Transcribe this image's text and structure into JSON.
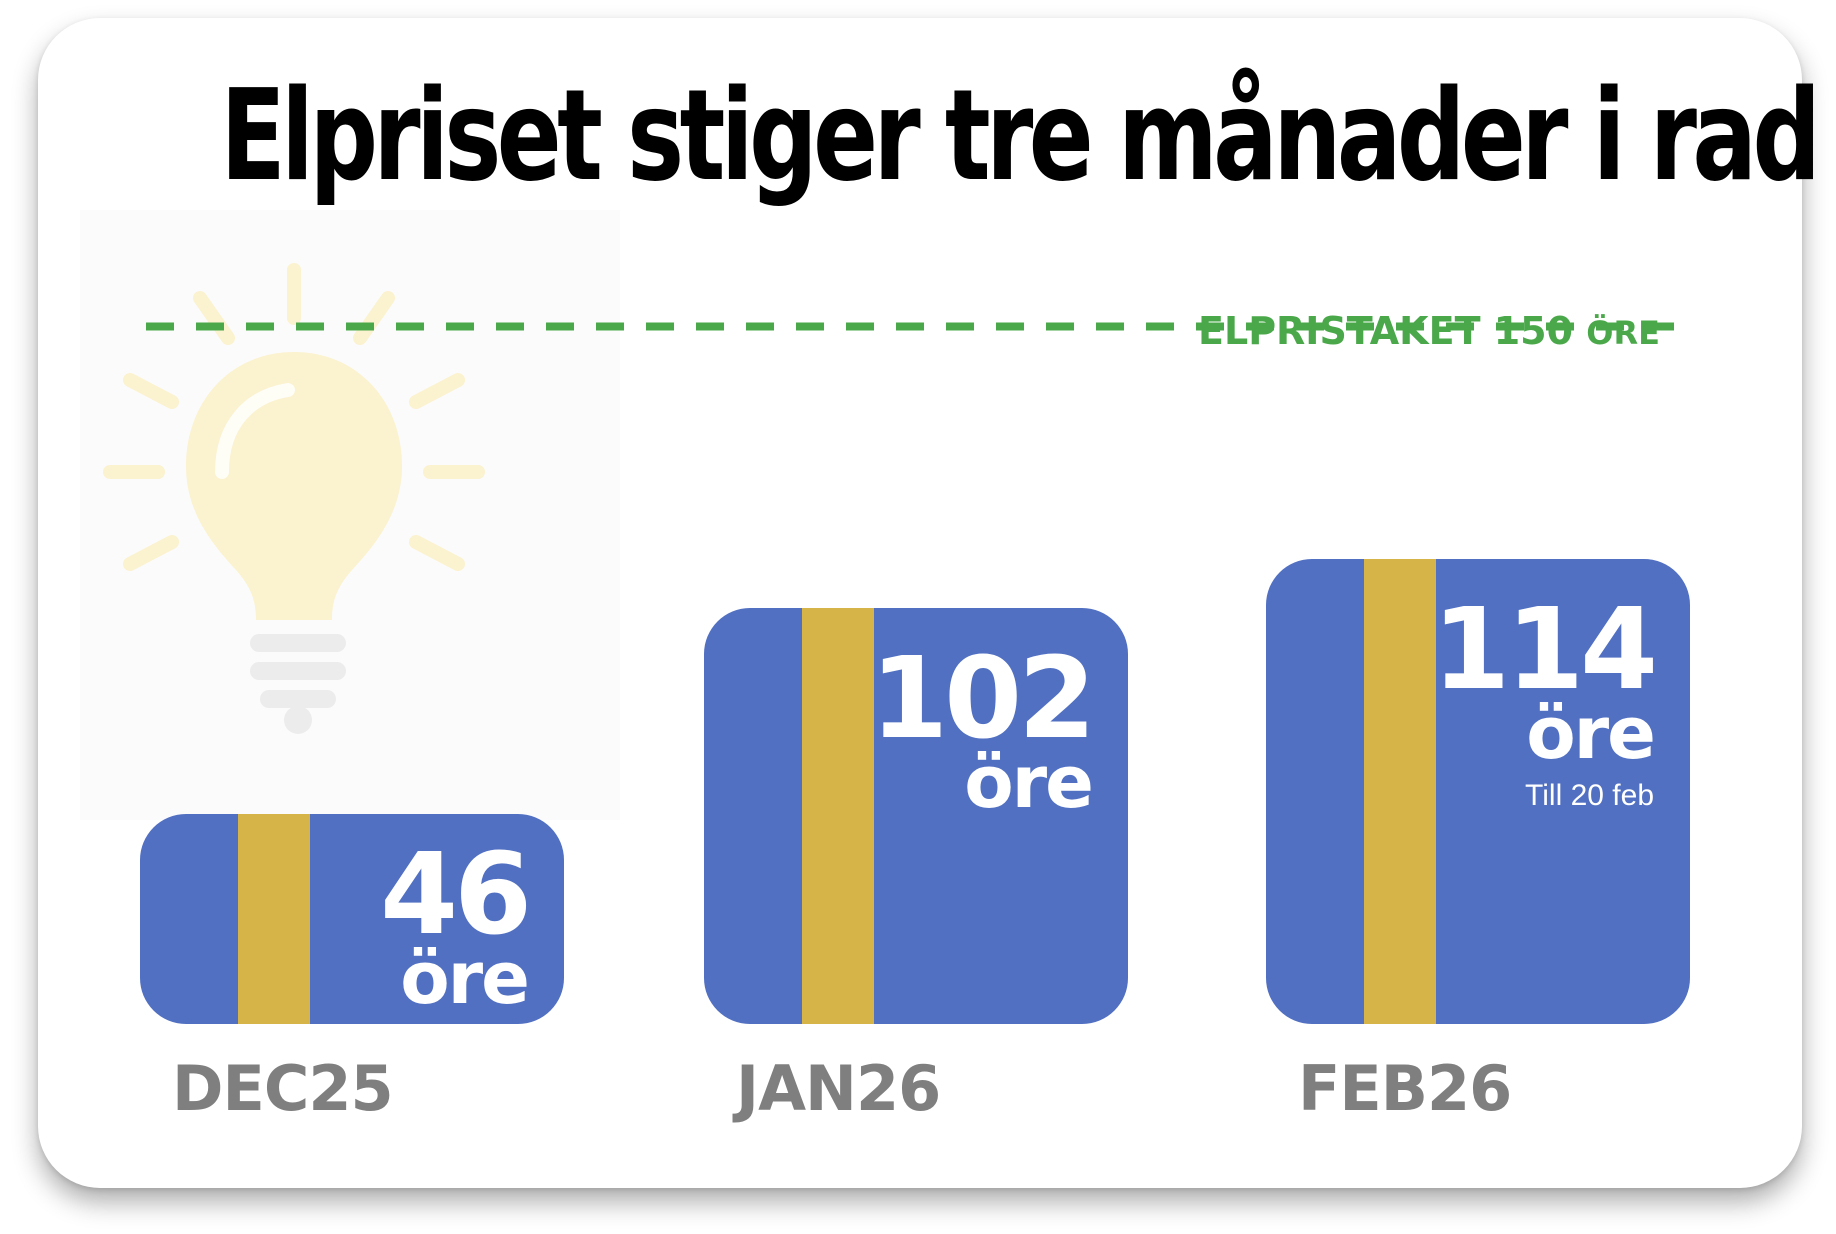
{
  "chart_data": {
    "type": "bar",
    "title": "Elpriset stiger tre månader i rad",
    "categories": [
      "DEC25",
      "JAN26",
      "FEB26"
    ],
    "series": [
      {
        "values": [
          46,
          102,
          114
        ]
      }
    ],
    "value_labels": [
      "46",
      "102",
      "114"
    ],
    "unit_label": "öre",
    "notes": [
      "",
      "",
      "Till 20 feb"
    ],
    "reference_line": {
      "value": 150,
      "label_main": "ELPRISTAKET 150",
      "label_unit": "ÖRE",
      "style": "dashed",
      "color": "#4aa84a"
    },
    "colors": {
      "bar": "#5170c2",
      "stripe": "#d6b447",
      "value_text": "#ffffff",
      "category_text": "#7f7f7f",
      "title_text": "#000000"
    },
    "decoration": "lightbulb-icon",
    "ylim": [
      0,
      150
    ],
    "grid": false,
    "legend": "none"
  }
}
